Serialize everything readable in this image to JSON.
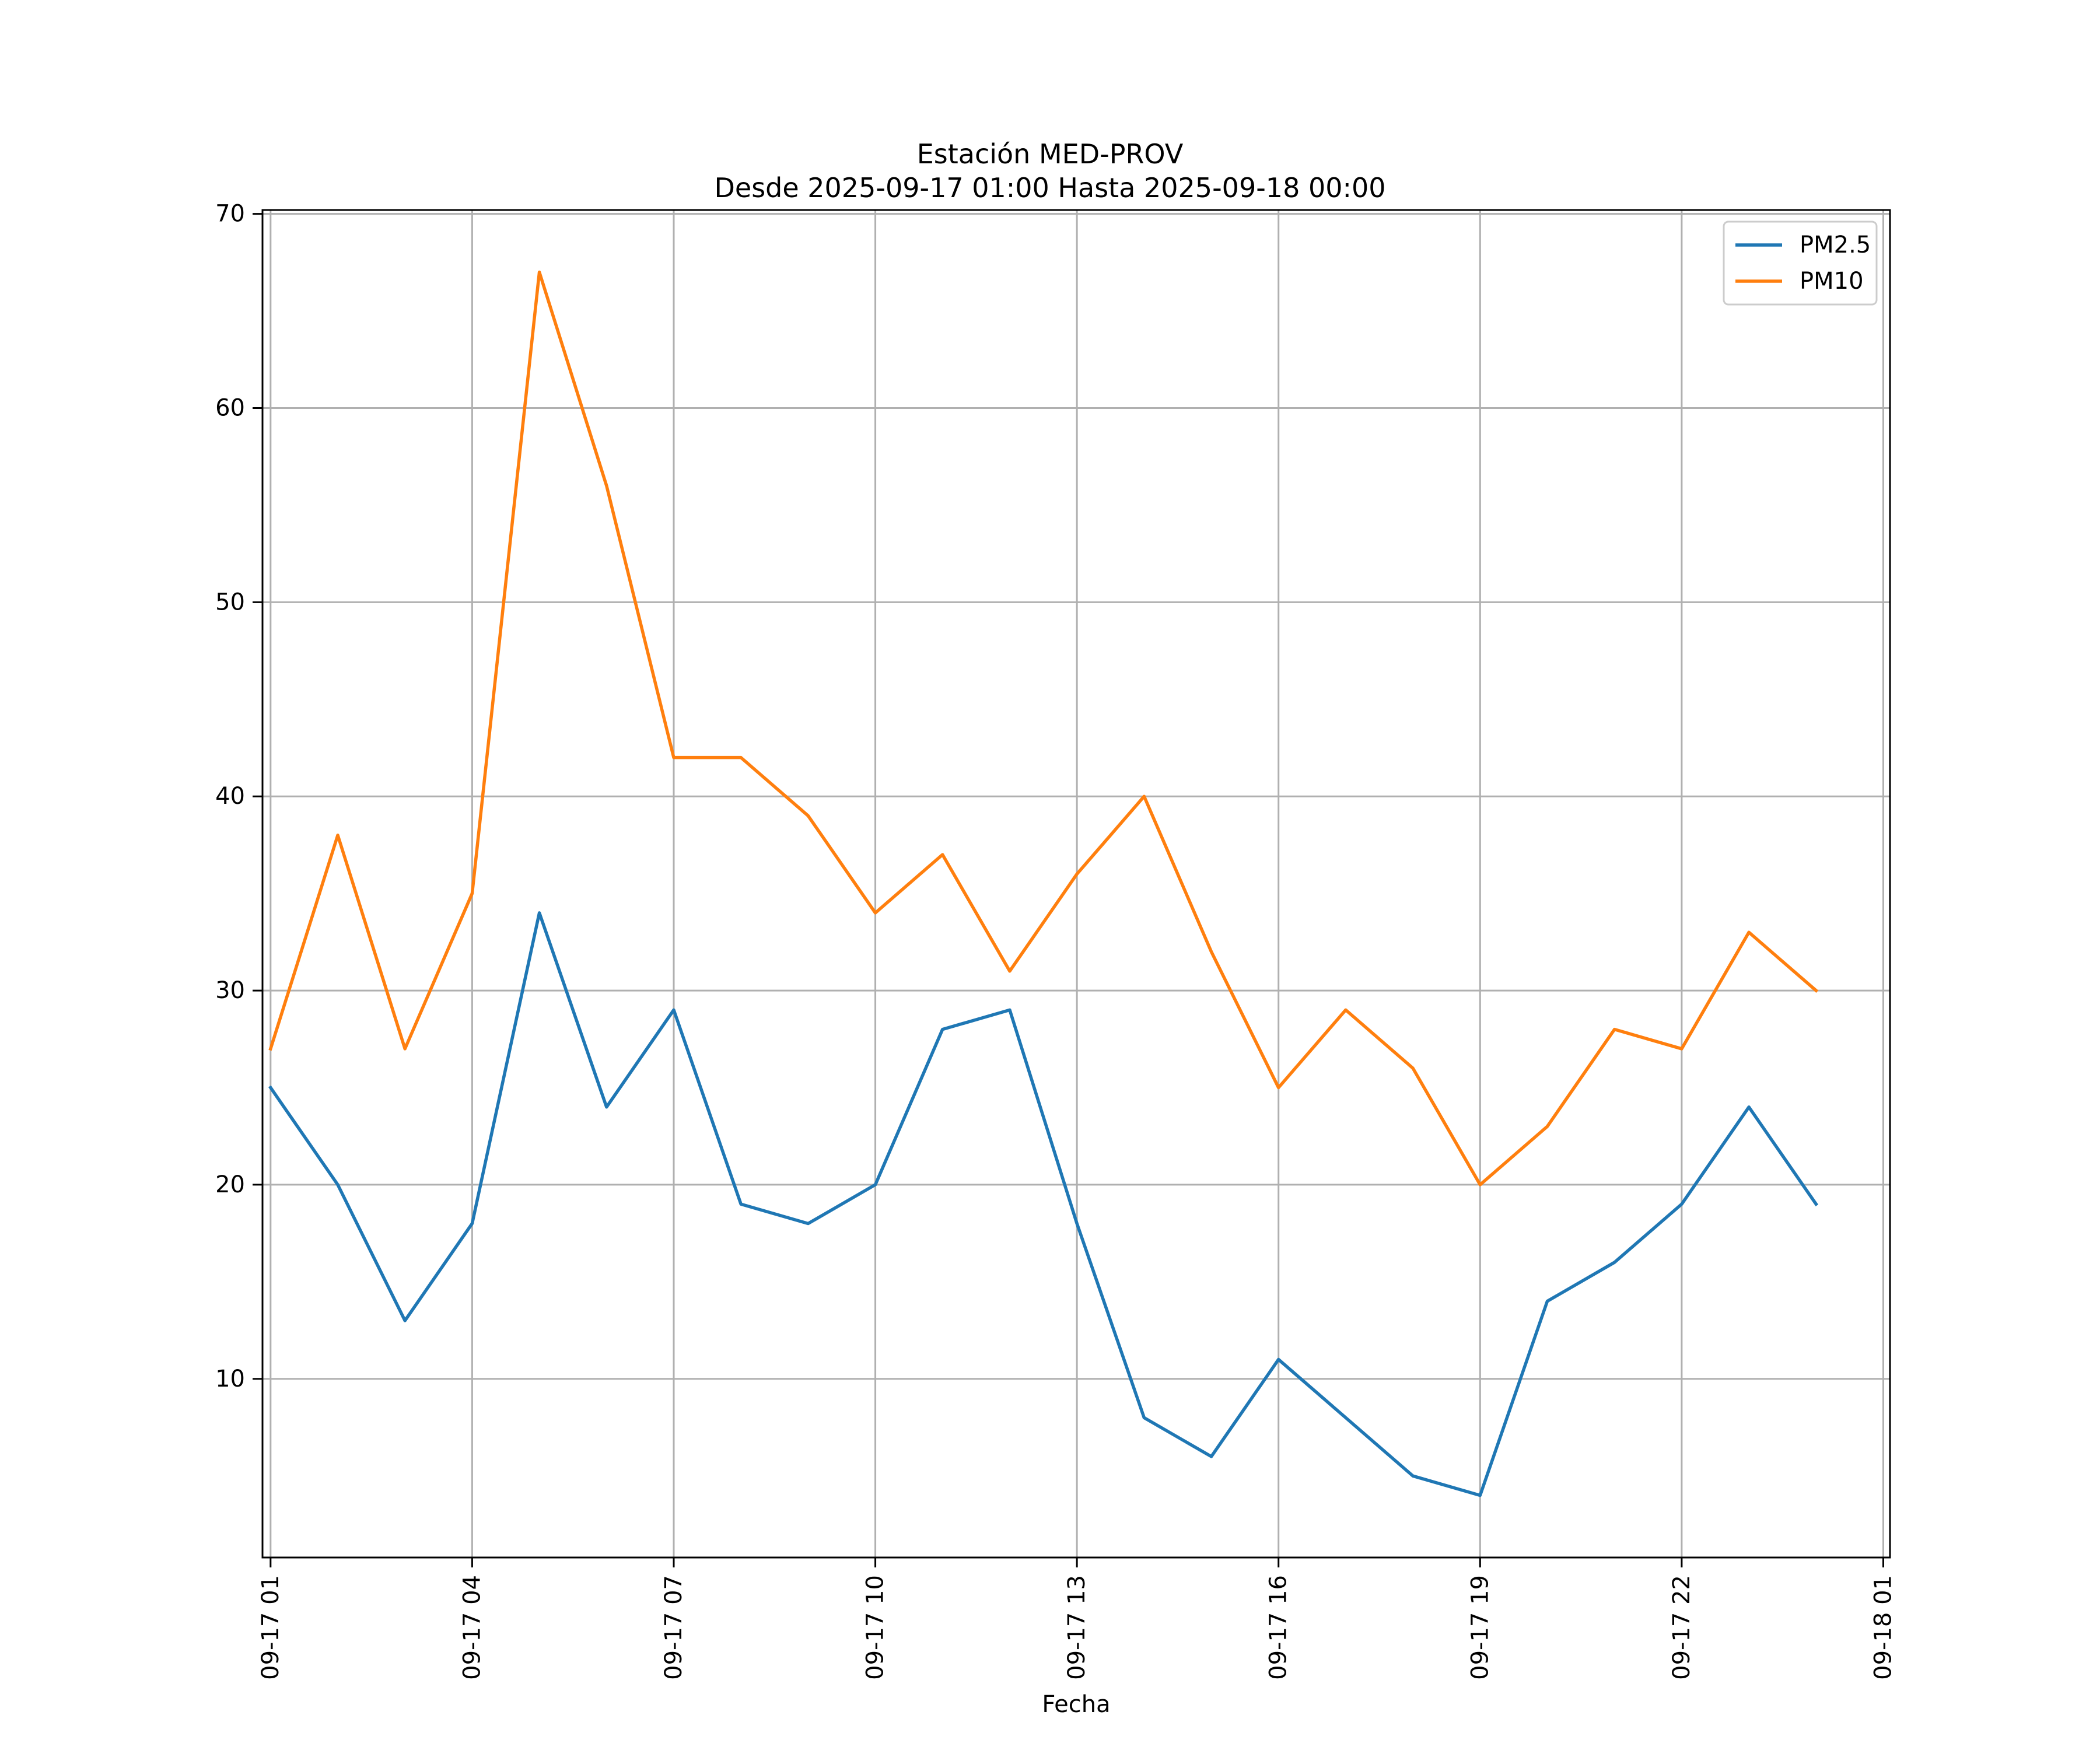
{
  "chart_data": {
    "type": "line",
    "title": "Estación MED-PROV",
    "subtitle": "Desde 2025-09-17 01:00 Hasta 2025-09-18 00:00",
    "xlabel": "Fecha",
    "ylabel": "",
    "x_hours": [
      1,
      2,
      3,
      4,
      5,
      6,
      7,
      8,
      9,
      10,
      11,
      12,
      13,
      14,
      15,
      16,
      17,
      18,
      19,
      20,
      21,
      22,
      23,
      24
    ],
    "xlim": [
      0.88,
      25.1
    ],
    "ylim": [
      0.8,
      70.2
    ],
    "xticks": [
      1,
      4,
      7,
      10,
      13,
      16,
      19,
      22,
      25
    ],
    "xtick_labels": [
      "09-17 01",
      "09-17 04",
      "09-17 07",
      "09-17 10",
      "09-17 13",
      "09-17 16",
      "09-17 19",
      "09-17 22",
      "09-18 01"
    ],
    "yticks": [
      10,
      20,
      30,
      40,
      50,
      60,
      70
    ],
    "ytick_labels": [
      "10",
      "20",
      "30",
      "40",
      "50",
      "60",
      "70"
    ],
    "grid": true,
    "legend_position": "top-right",
    "series": [
      {
        "name": "PM2.5",
        "color": "#1f77b4",
        "values": [
          25,
          20,
          13,
          18,
          34,
          24,
          29,
          19,
          18,
          20,
          28,
          29,
          18,
          8,
          6,
          11,
          8,
          5,
          4,
          14,
          16,
          19,
          24,
          19
        ]
      },
      {
        "name": "PM10",
        "color": "#ff7f0e",
        "values": [
          27,
          38,
          27,
          35,
          67,
          56,
          42,
          42,
          39,
          34,
          37,
          31,
          36,
          40,
          32,
          25,
          29,
          26,
          20,
          23,
          28,
          27,
          33,
          30
        ]
      }
    ]
  }
}
